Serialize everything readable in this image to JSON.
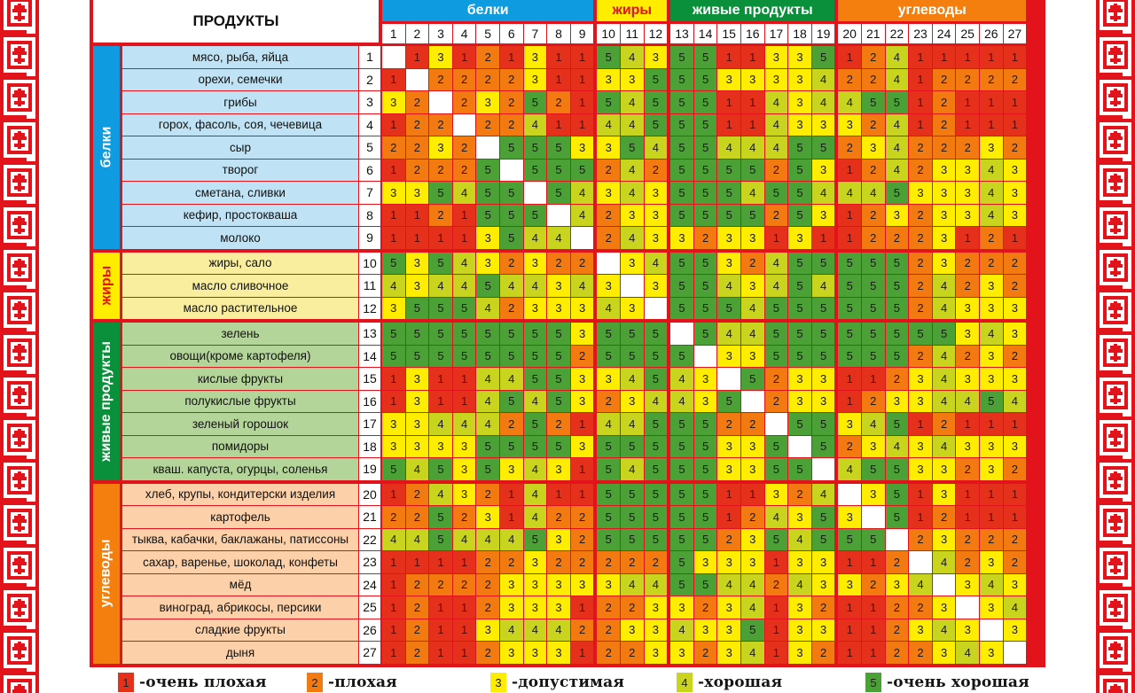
{
  "colors": {
    "frame": "#e3131b",
    "scale": {
      "1": "#e5301b",
      "2": "#f37a10",
      "3": "#ffed00",
      "4": "#c8d41e",
      "5": "#4ba135"
    },
    "diagonal": "#ffffff"
  },
  "chart_data": {
    "type": "heatmap",
    "title": "ПРОДУКТЫ",
    "groups": [
      {
        "name": "белки",
        "from": 1,
        "to": 9,
        "color": "#0f9be0",
        "label_color": "#ffffff",
        "row_bg": "#bfe3f5"
      },
      {
        "name": "жиры",
        "from": 10,
        "to": 12,
        "color": "#ffed00",
        "label_color": "#e3131b",
        "row_bg": "#f8ee9e"
      },
      {
        "name": "живые продукты",
        "from": 13,
        "to": 19,
        "color": "#0a8f3a",
        "label_color": "#ffffff",
        "row_bg": "#b4d59a"
      },
      {
        "name": "углеводы",
        "from": 20,
        "to": 27,
        "color": "#f47f0e",
        "label_color": "#ffffff",
        "row_bg": "#fcd0a8"
      }
    ],
    "products": [
      "мясо, рыба, яйца",
      "орехи, семечки",
      "грибы",
      "горох, фасоль, соя, чечевица",
      "сыр",
      "творог",
      "сметана, сливки",
      "кефир, простокваша",
      "молоко",
      "жиры, сало",
      "масло сливочное",
      "масло растительное",
      "зелень",
      "овощи(кроме картофеля)",
      "кислые фрукты",
      "полукислые фрукты",
      "зеленый горошок",
      "помидоры",
      "кваш. капуста, огурцы, соленья",
      "хлеб, крупы, кондитерски изделия",
      "картофель",
      "тыква, кабачки, баклажаны, патиссоны",
      "сахар, варенье, шоколад, конфеты",
      "мёд",
      "виноград, абрикосы, персики",
      "сладкие фрукты",
      "дыня"
    ],
    "row_numbers": [
      "1",
      "2",
      "3",
      "4",
      "5",
      "6",
      "7",
      "8",
      "9",
      "10",
      "11",
      "12",
      "13",
      "14",
      "15",
      "16",
      "17",
      "18",
      "19",
      "20",
      "21",
      "22",
      "23",
      "24",
      "25",
      "26",
      "27"
    ],
    "column_numbers": [
      "1",
      "2",
      "3",
      "4",
      "5",
      "6",
      "7",
      "8",
      "9",
      "10",
      "11",
      "12",
      "13",
      "14",
      "15",
      "16",
      "17",
      "18",
      "19",
      "20",
      "21",
      "22",
      "23",
      "24",
      "25",
      "26",
      "27"
    ],
    "values": [
      [
        null,
        1,
        3,
        1,
        2,
        1,
        3,
        1,
        1,
        5,
        4,
        3,
        5,
        5,
        1,
        1,
        3,
        3,
        5,
        1,
        2,
        4,
        1,
        1,
        1,
        1,
        1
      ],
      [
        1,
        null,
        2,
        2,
        2,
        2,
        3,
        1,
        1,
        3,
        3,
        5,
        5,
        5,
        3,
        3,
        3,
        3,
        4,
        2,
        2,
        4,
        1,
        2,
        2,
        2,
        2
      ],
      [
        3,
        2,
        null,
        2,
        3,
        2,
        5,
        2,
        1,
        5,
        4,
        5,
        5,
        5,
        1,
        1,
        4,
        3,
        4,
        4,
        5,
        5,
        1,
        2,
        1,
        1,
        1
      ],
      [
        1,
        2,
        2,
        null,
        2,
        2,
        4,
        1,
        1,
        4,
        4,
        5,
        5,
        5,
        1,
        1,
        4,
        3,
        3,
        3,
        2,
        4,
        1,
        2,
        1,
        1,
        1
      ],
      [
        2,
        2,
        3,
        2,
        null,
        5,
        5,
        5,
        3,
        3,
        5,
        4,
        5,
        5,
        4,
        4,
        4,
        5,
        5,
        2,
        3,
        4,
        2,
        2,
        2,
        3,
        2
      ],
      [
        1,
        2,
        2,
        2,
        5,
        null,
        5,
        5,
        5,
        2,
        4,
        2,
        5,
        5,
        5,
        5,
        2,
        5,
        3,
        1,
        2,
        4,
        2,
        3,
        3,
        4,
        3
      ],
      [
        3,
        3,
        5,
        4,
        5,
        5,
        null,
        5,
        4,
        3,
        4,
        3,
        5,
        5,
        5,
        4,
        5,
        5,
        4,
        4,
        4,
        5,
        3,
        3,
        3,
        4,
        3
      ],
      [
        1,
        1,
        2,
        1,
        5,
        5,
        5,
        null,
        4,
        2,
        3,
        3,
        5,
        5,
        5,
        5,
        2,
        5,
        3,
        1,
        2,
        3,
        2,
        3,
        3,
        4,
        3
      ],
      [
        1,
        1,
        1,
        1,
        3,
        5,
        4,
        4,
        null,
        2,
        4,
        3,
        3,
        2,
        3,
        3,
        1,
        3,
        1,
        1,
        2,
        2,
        2,
        3,
        1,
        2,
        1
      ],
      [
        5,
        3,
        5,
        4,
        3,
        2,
        3,
        2,
        2,
        null,
        3,
        4,
        5,
        5,
        3,
        2,
        4,
        5,
        5,
        5,
        5,
        5,
        2,
        3,
        2,
        2,
        2
      ],
      [
        4,
        3,
        4,
        4,
        5,
        4,
        4,
        3,
        4,
        3,
        null,
        3,
        5,
        5,
        4,
        3,
        4,
        5,
        4,
        5,
        5,
        5,
        2,
        4,
        2,
        3,
        2
      ],
      [
        3,
        5,
        5,
        5,
        4,
        2,
        3,
        3,
        3,
        4,
        3,
        null,
        5,
        5,
        5,
        4,
        5,
        5,
        5,
        5,
        5,
        5,
        2,
        4,
        3,
        3,
        3
      ],
      [
        5,
        5,
        5,
        5,
        5,
        5,
        5,
        5,
        3,
        5,
        5,
        5,
        null,
        5,
        4,
        4,
        5,
        5,
        5,
        5,
        5,
        5,
        5,
        5,
        3,
        4,
        3
      ],
      [
        5,
        5,
        5,
        5,
        5,
        5,
        5,
        5,
        2,
        5,
        5,
        5,
        5,
        null,
        3,
        3,
        5,
        5,
        5,
        5,
        5,
        5,
        2,
        4,
        2,
        3,
        2
      ],
      [
        1,
        3,
        1,
        1,
        4,
        4,
        5,
        5,
        3,
        3,
        4,
        5,
        4,
        3,
        null,
        5,
        2,
        3,
        3,
        1,
        1,
        2,
        3,
        4,
        3,
        3,
        3
      ],
      [
        1,
        3,
        1,
        1,
        4,
        5,
        4,
        5,
        3,
        2,
        3,
        4,
        4,
        3,
        5,
        null,
        2,
        3,
        3,
        1,
        2,
        3,
        3,
        4,
        4,
        5,
        4
      ],
      [
        3,
        3,
        4,
        4,
        4,
        2,
        5,
        2,
        1,
        4,
        4,
        5,
        5,
        5,
        2,
        2,
        null,
        5,
        5,
        3,
        4,
        5,
        1,
        2,
        1,
        1,
        1
      ],
      [
        3,
        3,
        3,
        3,
        5,
        5,
        5,
        5,
        3,
        5,
        5,
        5,
        5,
        5,
        3,
        3,
        5,
        null,
        5,
        2,
        3,
        4,
        3,
        4,
        3,
        3,
        3
      ],
      [
        5,
        4,
        5,
        3,
        5,
        3,
        4,
        3,
        1,
        5,
        4,
        5,
        5,
        5,
        3,
        3,
        5,
        5,
        null,
        4,
        5,
        5,
        3,
        3,
        2,
        3,
        2
      ],
      [
        1,
        2,
        4,
        3,
        2,
        1,
        4,
        1,
        1,
        5,
        5,
        5,
        5,
        5,
        1,
        1,
        3,
        2,
        4,
        null,
        3,
        5,
        1,
        3,
        1,
        1,
        1
      ],
      [
        2,
        2,
        5,
        2,
        3,
        1,
        4,
        2,
        2,
        5,
        5,
        5,
        5,
        5,
        1,
        2,
        4,
        3,
        5,
        3,
        null,
        5,
        1,
        2,
        1,
        1,
        1
      ],
      [
        4,
        4,
        5,
        4,
        4,
        4,
        5,
        3,
        2,
        5,
        5,
        5,
        5,
        5,
        2,
        3,
        5,
        4,
        5,
        5,
        5,
        null,
        2,
        3,
        2,
        2,
        2
      ],
      [
        1,
        1,
        1,
        1,
        2,
        2,
        3,
        2,
        2,
        2,
        2,
        2,
        5,
        3,
        3,
        3,
        1,
        3,
        3,
        1,
        1,
        2,
        null,
        4,
        2,
        3,
        2
      ],
      [
        1,
        2,
        2,
        2,
        2,
        3,
        3,
        3,
        3,
        3,
        4,
        4,
        5,
        5,
        4,
        4,
        2,
        4,
        3,
        3,
        2,
        3,
        4,
        null,
        3,
        4,
        3
      ],
      [
        1,
        2,
        1,
        1,
        2,
        3,
        3,
        3,
        1,
        2,
        2,
        3,
        3,
        2,
        3,
        4,
        1,
        3,
        2,
        1,
        1,
        2,
        2,
        3,
        null,
        3,
        4
      ],
      [
        1,
        2,
        1,
        1,
        3,
        4,
        4,
        4,
        2,
        2,
        3,
        3,
        4,
        3,
        3,
        5,
        1,
        3,
        3,
        1,
        1,
        2,
        3,
        4,
        3,
        null,
        3
      ],
      [
        1,
        2,
        1,
        1,
        2,
        3,
        3,
        3,
        1,
        2,
        2,
        3,
        3,
        2,
        3,
        4,
        1,
        3,
        2,
        1,
        1,
        2,
        2,
        3,
        4,
        3,
        null
      ]
    ],
    "scale_min": 1,
    "scale_max": 5
  },
  "legend": [
    {
      "value": "1",
      "label": "-очень плохая"
    },
    {
      "value": "2",
      "label": "-плохая"
    },
    {
      "value": "3",
      "label": "-допустимая"
    },
    {
      "value": "4",
      "label": "-хорошая"
    },
    {
      "value": "5",
      "label": "-очень хорошая"
    }
  ]
}
